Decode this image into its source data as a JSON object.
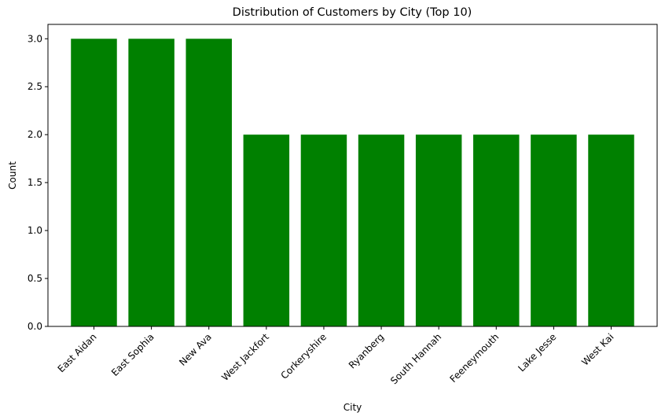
{
  "chart_data": {
    "type": "bar",
    "title": "Distribution of Customers by City (Top 10)",
    "xlabel": "City",
    "ylabel": "Count",
    "categories": [
      "East Aidan",
      "East Sophia",
      "New Ava",
      "West Jackfort",
      "Corkeryshire",
      "Ryanberg",
      "South Hannah",
      "Feeneymouth",
      "Lake Jesse",
      "West Kai"
    ],
    "values": [
      3,
      3,
      3,
      2,
      2,
      2,
      2,
      2,
      2,
      2
    ],
    "ylim": [
      0,
      3.15
    ],
    "yticks": [
      "0.0",
      "0.5",
      "1.0",
      "1.5",
      "2.0",
      "2.5",
      "3.0"
    ],
    "bar_color": "#008000",
    "grid": false,
    "legend": "none"
  }
}
